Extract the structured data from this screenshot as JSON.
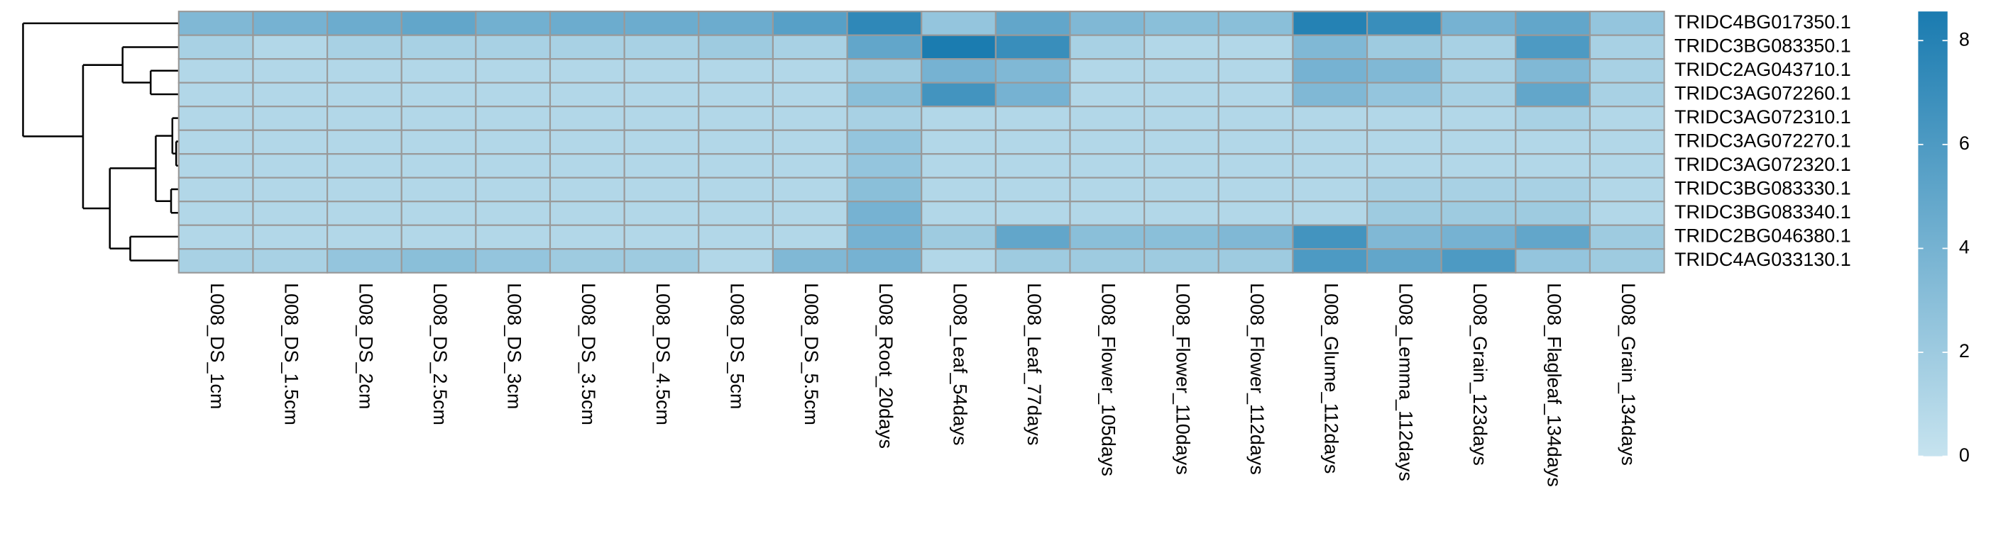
{
  "chart_data": {
    "type": "heatmap",
    "rows": [
      "TRIDC4BG017350.1",
      "TRIDC3BG083350.1",
      "TRIDC2AG043710.1",
      "TRIDC3AG072260.1",
      "TRIDC3AG072310.1",
      "TRIDC3AG072270.1",
      "TRIDC3AG072320.1",
      "TRIDC3BG083330.1",
      "TRIDC3BG083340.1",
      "TRIDC2BG046380.1",
      "TRIDC4AG033130.1"
    ],
    "columns": [
      "L008_DS_1cm",
      "L008_DS_1.5cm",
      "L008_DS_2cm",
      "L008_DS_2.5cm",
      "L008_DS_3cm",
      "L008_DS_3.5cm",
      "L008_DS_4.5cm",
      "L008_DS_5cm",
      "L008_DS_5.5cm",
      "L008_Root_20days",
      "L008_Leaf_54days",
      "L008_Leaf_77days",
      "L008_Flower_105days",
      "L008_Flower_110days",
      "L008_Flower_112days",
      "L008_Glume_112days",
      "L008_Lemma_112days",
      "L008_Grain_123days",
      "L008_Flagleaf_134days",
      "L008_Grain_134days"
    ],
    "values": [
      [
        3.5,
        4,
        4.5,
        5,
        4.2,
        4.5,
        4.5,
        4.5,
        5.5,
        7.5,
        2.5,
        5,
        3.5,
        3,
        3,
        8,
        7,
        4,
        5,
        2.5
      ],
      [
        1.5,
        1,
        1.5,
        1.5,
        1.5,
        1.5,
        1.5,
        2,
        1.5,
        5,
        8.5,
        7,
        1.5,
        1,
        1,
        3.5,
        2,
        1.5,
        6,
        1.5
      ],
      [
        1,
        1,
        1,
        1,
        1,
        1,
        1,
        1,
        1,
        2,
        4,
        3.5,
        1,
        1,
        1,
        4,
        3.5,
        1.5,
        3.5,
        1.5
      ],
      [
        1,
        1,
        1,
        1,
        1,
        1,
        1,
        1,
        1,
        3,
        6.5,
        4,
        1,
        1,
        1,
        3.5,
        2.5,
        1.5,
        5,
        1.5
      ],
      [
        1,
        1,
        1,
        1,
        1,
        1,
        1,
        1,
        1,
        1.5,
        1,
        1,
        1,
        1,
        1,
        1,
        1,
        1,
        1.5,
        1
      ],
      [
        1,
        1,
        1,
        1,
        1,
        1,
        1,
        1,
        1,
        2.5,
        1,
        1,
        1,
        1,
        1,
        1,
        1,
        1,
        1,
        1
      ],
      [
        1,
        1,
        1,
        1,
        1,
        1,
        1,
        1,
        1,
        2.5,
        1,
        1,
        1,
        1,
        1,
        1,
        1,
        1,
        1,
        1
      ],
      [
        1,
        1,
        1,
        1,
        1,
        1,
        1,
        1,
        1,
        3,
        1,
        1,
        1,
        1,
        1,
        1,
        1.5,
        1.5,
        1.5,
        1
      ],
      [
        1,
        1,
        1,
        1,
        1,
        1,
        1,
        1,
        1,
        4,
        1,
        1,
        1,
        1,
        1,
        1,
        2,
        2,
        2,
        1
      ],
      [
        1,
        1,
        1,
        1,
        1,
        1,
        1,
        1,
        1,
        4,
        2,
        5,
        3,
        3,
        3.5,
        6.5,
        3.5,
        4,
        5,
        2
      ],
      [
        1.5,
        1.5,
        2.5,
        3,
        2.5,
        2,
        2,
        1,
        3.5,
        4,
        1,
        2,
        2,
        2,
        2,
        6,
        5,
        6,
        2.5,
        2
      ]
    ],
    "colormap": [
      "#c6e3ef",
      "#1a7bb0"
    ],
    "colorbar_lim": [
      0,
      8.56
    ],
    "colorbar_ticks": [
      0,
      2,
      4,
      6,
      8
    ],
    "cell_border": "#999999"
  }
}
